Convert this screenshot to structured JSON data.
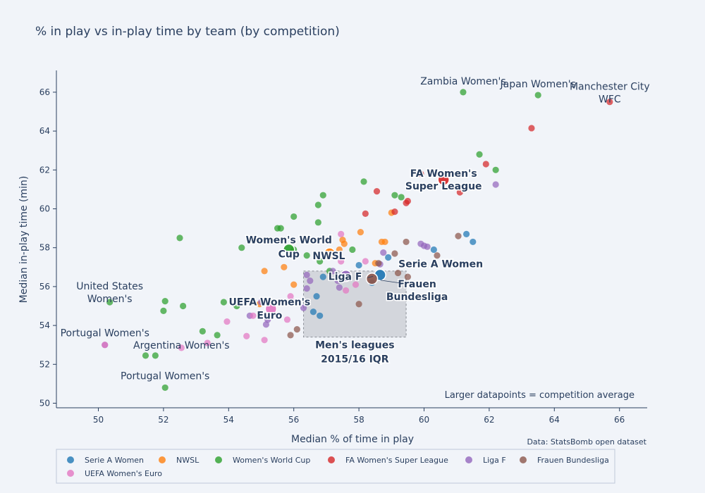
{
  "chart_data": {
    "type": "scatter",
    "title": "% in play vs in-play time by team (by competition)",
    "xlabel": "Median % of time in play",
    "ylabel": "Median in-play time (min)",
    "xlim": [
      48.8,
      67
    ],
    "ylim": [
      49.6,
      67.1
    ],
    "x_ticks": [
      50,
      52,
      54,
      56,
      58,
      60,
      62,
      64,
      66
    ],
    "y_ticks": [
      50,
      52,
      54,
      56,
      58,
      60,
      62,
      64,
      66
    ],
    "grid": false,
    "legend_position": "bottom",
    "note": "Larger datapoints = competition average",
    "source": "Data: StatsBomb open dataset",
    "iqr_box": {
      "label_line1": "Men's leagues",
      "label_line2": "2015/16 IQR",
      "x": [
        56.3,
        59.45
      ],
      "y": [
        53.4,
        56.8
      ]
    },
    "series": [
      {
        "name": "Serie A Women",
        "color": "#1f77b4",
        "average": [
          58.65,
          56.6
        ],
        "points": [
          [
            61.3,
            58.7
          ],
          [
            61.5,
            58.3
          ],
          [
            60.3,
            57.9
          ],
          [
            58.9,
            57.5
          ],
          [
            58.0,
            57.1
          ],
          [
            56.6,
            54.7
          ],
          [
            56.8,
            54.5
          ],
          [
            56.7,
            55.5
          ],
          [
            58.4,
            56.2
          ],
          [
            56.9,
            56.5
          ]
        ]
      },
      {
        "name": "NWSL",
        "color": "#ff7f0e",
        "average": [
          57.1,
          57.7
        ],
        "points": [
          [
            58.05,
            58.8
          ],
          [
            58.7,
            58.3
          ],
          [
            58.8,
            58.3
          ],
          [
            57.5,
            58.4
          ],
          [
            57.55,
            58.2
          ],
          [
            57.4,
            57.9
          ],
          [
            55.1,
            56.8
          ],
          [
            55.7,
            57.0
          ],
          [
            56.0,
            56.1
          ],
          [
            54.95,
            55.1
          ],
          [
            59.0,
            59.8
          ],
          [
            58.5,
            57.2
          ]
        ]
      },
      {
        "name": "Women's World Cup",
        "color": "#2ca02c",
        "average": [
          55.85,
          57.9
        ],
        "points": [
          [
            61.2,
            66.0
          ],
          [
            63.5,
            65.85
          ],
          [
            61.7,
            62.8
          ],
          [
            62.2,
            62.0
          ],
          [
            58.15,
            61.4
          ],
          [
            56.9,
            60.7
          ],
          [
            56.75,
            60.2
          ],
          [
            59.1,
            60.7
          ],
          [
            59.3,
            60.6
          ],
          [
            56.0,
            59.6
          ],
          [
            56.75,
            59.3
          ],
          [
            55.5,
            59.0
          ],
          [
            55.6,
            59.0
          ],
          [
            52.5,
            58.5
          ],
          [
            54.4,
            58.0
          ],
          [
            57.8,
            57.9
          ],
          [
            56.0,
            57.9
          ],
          [
            56.4,
            57.6
          ],
          [
            56.8,
            57.3
          ],
          [
            57.1,
            56.8
          ],
          [
            50.35,
            55.2
          ],
          [
            52.05,
            55.25
          ],
          [
            52.0,
            54.75
          ],
          [
            52.6,
            55.0
          ],
          [
            53.85,
            55.2
          ],
          [
            54.25,
            55.0
          ],
          [
            53.2,
            53.7
          ],
          [
            53.65,
            53.5
          ],
          [
            51.45,
            52.45
          ],
          [
            51.75,
            52.45
          ],
          [
            52.05,
            50.8
          ]
        ]
      },
      {
        "name": "FA Women's Super League",
        "color": "#d62728",
        "average": [
          60.6,
          61.5
        ],
        "points": [
          [
            65.7,
            65.5
          ],
          [
            63.3,
            64.15
          ],
          [
            61.9,
            62.3
          ],
          [
            61.1,
            60.85
          ],
          [
            58.55,
            60.9
          ],
          [
            59.45,
            60.3
          ],
          [
            59.5,
            60.4
          ],
          [
            59.1,
            59.85
          ],
          [
            58.2,
            59.75
          ],
          [
            59.9,
            61.8
          ]
        ]
      },
      {
        "name": "Liga F",
        "color": "#9467bd",
        "average": [
          57.6,
          56.55
        ],
        "points": [
          [
            62.2,
            61.25
          ],
          [
            59.9,
            58.2
          ],
          [
            60.1,
            58.05
          ],
          [
            60.0,
            58.1
          ],
          [
            58.75,
            57.75
          ],
          [
            58.65,
            57.15
          ],
          [
            57.2,
            56.8
          ],
          [
            57.35,
            56.3
          ],
          [
            57.4,
            55.95
          ],
          [
            56.5,
            56.3
          ],
          [
            56.4,
            55.9
          ],
          [
            56.3,
            54.9
          ],
          [
            55.0,
            55.2
          ],
          [
            55.2,
            54.3
          ],
          [
            55.15,
            54.05
          ],
          [
            54.65,
            54.5
          ],
          [
            50.2,
            53.0
          ],
          [
            56.4,
            56.6
          ]
        ]
      },
      {
        "name": "Frauen Bundesliga",
        "color": "#8c564b",
        "average": [
          58.4,
          56.4
        ],
        "points": [
          [
            61.05,
            58.6
          ],
          [
            60.4,
            57.6
          ],
          [
            59.45,
            58.3
          ],
          [
            59.1,
            57.7
          ],
          [
            58.0,
            55.1
          ],
          [
            56.1,
            53.8
          ],
          [
            55.9,
            53.5
          ],
          [
            59.5,
            56.5
          ],
          [
            58.6,
            57.2
          ],
          [
            59.2,
            56.7
          ]
        ]
      },
      {
        "name": "UEFA Women's Euro",
        "color": "#e377c2",
        "average": [
          55.3,
          54.85
        ],
        "points": [
          [
            57.45,
            58.7
          ],
          [
            58.2,
            57.3
          ],
          [
            57.45,
            57.3
          ],
          [
            55.9,
            55.5
          ],
          [
            55.8,
            54.3
          ],
          [
            54.75,
            54.5
          ],
          [
            53.95,
            54.2
          ],
          [
            54.55,
            53.45
          ],
          [
            55.1,
            53.25
          ],
          [
            53.35,
            53.1
          ],
          [
            52.55,
            52.85
          ],
          [
            50.2,
            53.0
          ],
          [
            57.9,
            56.1
          ],
          [
            57.6,
            55.8
          ],
          [
            56.0,
            55.2
          ]
        ]
      }
    ],
    "annotations": [
      {
        "text": "Zambia Women's",
        "x": 61.2,
        "y": 66.0,
        "bold": false
      },
      {
        "text": "Japan Women's",
        "x": 63.5,
        "y": 65.85,
        "bold": false
      },
      {
        "text": "Manchester City",
        "x": 65.7,
        "y": 65.5,
        "bold": false
      },
      {
        "text": "WFC",
        "x": 65.7,
        "y": 65.5,
        "bold": false
      },
      {
        "text": "United States",
        "x": 50.35,
        "y": 55.2,
        "bold": false
      },
      {
        "text": "Women's",
        "x": 50.35,
        "y": 55.2,
        "bold": false
      },
      {
        "text": "Portugal Women's",
        "x": 50.2,
        "y": 53.0,
        "bold": false
      },
      {
        "text": "Argentina Women's",
        "x": 52.55,
        "y": 52.85,
        "bold": false
      },
      {
        "text": "Portugal Women's",
        "x": 52.05,
        "y": 50.8,
        "bold": false
      },
      {
        "text": "FA Women's",
        "x": 60.6,
        "y": 61.5,
        "bold": true
      },
      {
        "text": "Super League",
        "x": 60.6,
        "y": 61.5,
        "bold": true
      },
      {
        "text": "Women's World",
        "x": 55.85,
        "y": 57.9,
        "bold": true
      },
      {
        "text": "Cup",
        "x": 55.85,
        "y": 57.9,
        "bold": true
      },
      {
        "text": "NWSL",
        "x": 57.1,
        "y": 57.7,
        "bold": true
      },
      {
        "text": "Liga F",
        "x": 57.6,
        "y": 56.55,
        "bold": true
      },
      {
        "text": "Serie A Women",
        "x": 58.65,
        "y": 56.6,
        "bold": true
      },
      {
        "text": "Frauen",
        "x": 58.4,
        "y": 56.4,
        "bold": true
      },
      {
        "text": "Bundesliga",
        "x": 58.4,
        "y": 56.4,
        "bold": true
      },
      {
        "text": "UEFA Women's",
        "x": 55.3,
        "y": 54.85,
        "bold": true
      },
      {
        "text": "Euro",
        "x": 55.3,
        "y": 54.85,
        "bold": true
      }
    ]
  }
}
